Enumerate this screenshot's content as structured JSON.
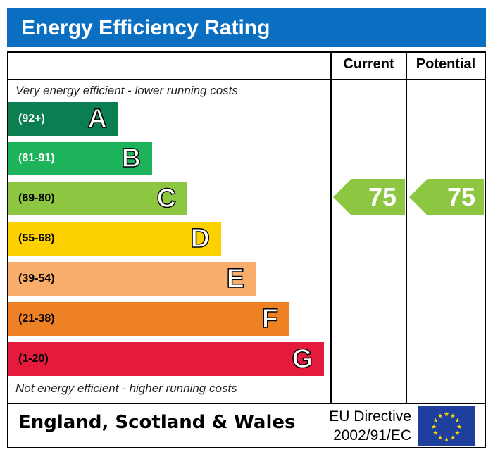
{
  "title": "Energy Efficiency Rating",
  "columns": {
    "current": "Current",
    "potential": "Potential"
  },
  "top_note": "Very energy efficient - lower running costs",
  "bottom_note": "Not energy efficient - higher running costs",
  "footer": {
    "region": "England, Scotland & Wales",
    "directive_line1": "EU Directive",
    "directive_line2": "2002/91/EC",
    "flag": "eu-flag"
  },
  "chart_data": {
    "type": "bar",
    "categories": [
      "A",
      "B",
      "C",
      "D",
      "E",
      "F",
      "G"
    ],
    "bands": [
      {
        "letter": "A",
        "range": "(92+)",
        "color": "#0b7f52"
      },
      {
        "letter": "B",
        "range": "(81-91)",
        "color": "#1cb35a"
      },
      {
        "letter": "C",
        "range": "(69-80)",
        "color": "#8dc641"
      },
      {
        "letter": "D",
        "range": "(55-68)",
        "color": "#fdd100"
      },
      {
        "letter": "E",
        "range": "(39-54)",
        "color": "#f8ae6a"
      },
      {
        "letter": "F",
        "range": "(21-38)",
        "color": "#ef8125"
      },
      {
        "letter": "G",
        "range": "(1-20)",
        "color": "#e41b3c"
      }
    ],
    "current": {
      "value": "75",
      "band": "C",
      "color": "#8dc641"
    },
    "potential": {
      "value": "75",
      "band": "C",
      "color": "#8dc641"
    }
  }
}
